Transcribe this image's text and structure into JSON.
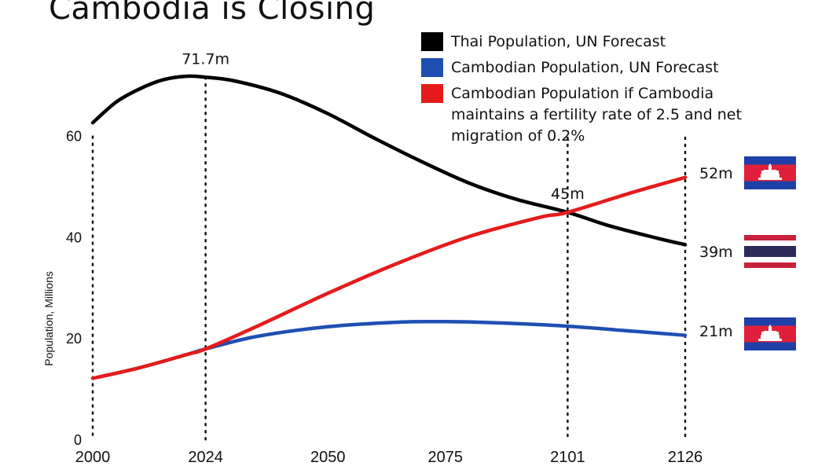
{
  "chart_data": {
    "type": "line",
    "title": "Cambodia is Closing",
    "ylabel": "Population, Millions",
    "xlim": [
      2000,
      2126
    ],
    "ylim": [
      0,
      72
    ],
    "x_ticks": [
      "2000",
      "2024",
      "2050",
      "2075",
      "2101",
      "2126"
    ],
    "y_ticks": [
      "0",
      "20",
      "40",
      "60"
    ],
    "series": [
      {
        "name": "Thai Population, UN Forecast",
        "color": "#000000",
        "x": [
          2000,
          2005,
          2010,
          2015,
          2020,
          2024,
          2030,
          2040,
          2050,
          2060,
          2070,
          2080,
          2090,
          2101,
          2110,
          2120,
          2126
        ],
        "y": [
          62.7,
          66.8,
          69.4,
          71.2,
          71.9,
          71.7,
          71.0,
          68.5,
          64.5,
          59.6,
          55.0,
          50.8,
          47.6,
          45.0,
          42.3,
          39.9,
          38.6
        ]
      },
      {
        "name": "Cambodian Population, UN Forecast",
        "color": "#1f4fb3",
        "x": [
          2000,
          2010,
          2020,
          2024,
          2035,
          2050,
          2065,
          2075,
          2085,
          2101,
          2115,
          2126
        ],
        "y": [
          12.2,
          14.3,
          16.9,
          18.0,
          20.5,
          22.4,
          23.3,
          23.4,
          23.2,
          22.5,
          21.5,
          20.7
        ]
      },
      {
        "name": "Cambodian Population if Cambodia maintains a fertility rate of 2.5 and net migration of 0.2%",
        "color": "#e51b1b",
        "x": [
          2000,
          2010,
          2020,
          2024,
          2035,
          2050,
          2065,
          2080,
          2095,
          2101,
          2115,
          2126
        ],
        "y": [
          12.2,
          14.3,
          16.9,
          18.0,
          22.5,
          29.0,
          35.0,
          40.2,
          44.0,
          45.0,
          49.0,
          51.9
        ]
      }
    ],
    "vertical_markers": [
      2000,
      2024,
      2101,
      2126
    ],
    "annotations": [
      {
        "text": "71.7m",
        "x": 2024,
        "y": 71.7
      },
      {
        "text": "45m",
        "x": 2101,
        "y": 45
      }
    ],
    "end_labels": [
      {
        "text": "52m",
        "y": 52,
        "flag": "cambodia-flag"
      },
      {
        "text": "39m",
        "y": 38.6,
        "flag": "thailand-flag"
      },
      {
        "text": "21m",
        "y": 20.7,
        "flag": "cambodia-flag"
      }
    ],
    "legend_position": "top-right",
    "grid": false
  }
}
